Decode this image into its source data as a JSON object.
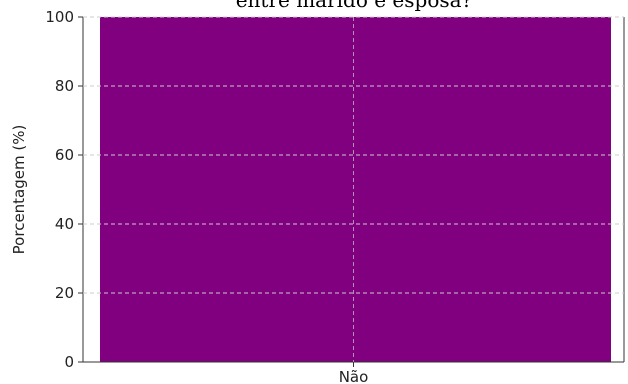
{
  "chart_data": {
    "type": "bar",
    "title": "entre marido e esposa?",
    "xlabel": "",
    "ylabel": "Porcentagem (%)",
    "categories": [
      "Não"
    ],
    "series": [
      {
        "values": [
          100
        ]
      }
    ],
    "ylim": [
      0,
      100
    ],
    "yticks": [
      0,
      20,
      40,
      60,
      80,
      100
    ],
    "grid": true,
    "legend": "none",
    "bar_color": "#800080",
    "grid_color": "#cccccc"
  }
}
